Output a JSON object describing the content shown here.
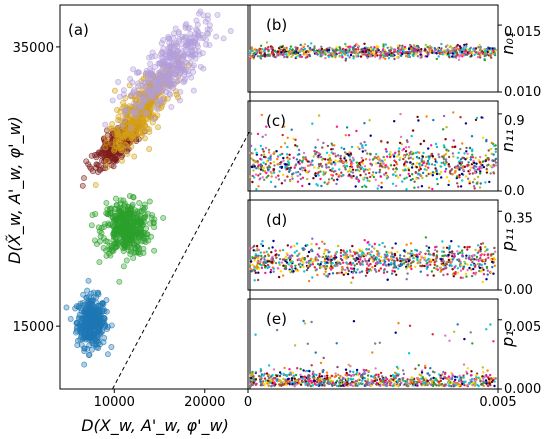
{
  "figure": {
    "background": "#ffffff"
  },
  "chart_data": [
    {
      "panel_label": "(a)",
      "type": "scatter",
      "xlabel": "D(X_w, A'_w, φ'_w)",
      "ylabel": "D(X̃_w, A'_w, φ'_w)",
      "xlim": [
        4000,
        25000
      ],
      "ylim": [
        10500,
        38000
      ],
      "xticks": [
        10000,
        20000
      ],
      "yticks": [
        15000,
        35000
      ],
      "xtick_labels": [
        "10000",
        "20000"
      ],
      "ytick_labels": [
        "15000",
        "35000"
      ],
      "reference_line": {
        "style": "dashed",
        "x": [
          9800,
          25000
        ],
        "y": [
          10500,
          29000
        ]
      },
      "series": [
        {
          "color": "#1f77b4",
          "center_x": 7500,
          "center_y": 15300,
          "spread_x": 800,
          "spread_y": 900,
          "count": 380
        },
        {
          "color": "#2ca02c",
          "center_x": 11300,
          "center_y": 22000,
          "spread_x": 1300,
          "spread_y": 950,
          "count": 420
        },
        {
          "color": "#7f1d1d",
          "center_x": 10300,
          "center_y": 28000,
          "spread_x": 1400,
          "spread_y": 900,
          "count": 280
        },
        {
          "color": "#d4a017",
          "center_x": 13000,
          "center_y": 30500,
          "spread_x": 2000,
          "spread_y": 1500,
          "count": 420
        },
        {
          "color": "#b39ddb",
          "center_x": 16000,
          "center_y": 33500,
          "spread_x": 2600,
          "spread_y": 1700,
          "count": 380
        }
      ]
    },
    {
      "panel_label": "(b)",
      "type": "scatter",
      "ylabel": "n₀₁",
      "ylim": [
        0.01,
        0.0165
      ],
      "yticks": [
        0.01,
        0.015
      ],
      "ytick_labels": [
        "0.010",
        "0.015"
      ],
      "xlim": [
        0,
        0.005
      ],
      "band_center": 0.013,
      "band_spread": 0.00022
    },
    {
      "panel_label": "(c)",
      "type": "scatter",
      "ylabel": "n₁₁",
      "ylim": [
        0,
        1.05
      ],
      "yticks": [
        0.0,
        0.9
      ],
      "ytick_labels": [
        "0.0",
        "0.9"
      ],
      "xlim": [
        0,
        0.005
      ],
      "band_center": 0.3,
      "band_spread": 0.12
    },
    {
      "panel_label": "(d)",
      "type": "scatter",
      "ylabel": "p₁₁",
      "ylim": [
        0,
        0.4
      ],
      "yticks": [
        0.0,
        0.35
      ],
      "ytick_labels": [
        "0.00",
        "0.35"
      ],
      "xlim": [
        0,
        0.005
      ],
      "band_center": 0.13,
      "band_spread": 0.035
    },
    {
      "panel_label": "(e)",
      "type": "scatter",
      "ylabel": "p₁",
      "ylim": [
        0,
        0.0065
      ],
      "yticks": [
        0.0,
        0.005
      ],
      "ytick_labels": [
        "0.000",
        "0.005"
      ],
      "xlim": [
        0,
        0.005
      ],
      "xticks": [
        0,
        0.005
      ],
      "xtick_labels": [
        "0",
        "0.005"
      ],
      "band_center": 0.001,
      "band_spread": 0.0006
    }
  ],
  "palette": [
    "#1f77b4",
    "#ff7f0e",
    "#2ca02c",
    "#d62728",
    "#9467bd",
    "#8c564b",
    "#e377c2",
    "#7f7f7f",
    "#bcbd22",
    "#17becf",
    "#ffd700",
    "#800000",
    "#000080",
    "#00ced1",
    "#ff1493"
  ]
}
